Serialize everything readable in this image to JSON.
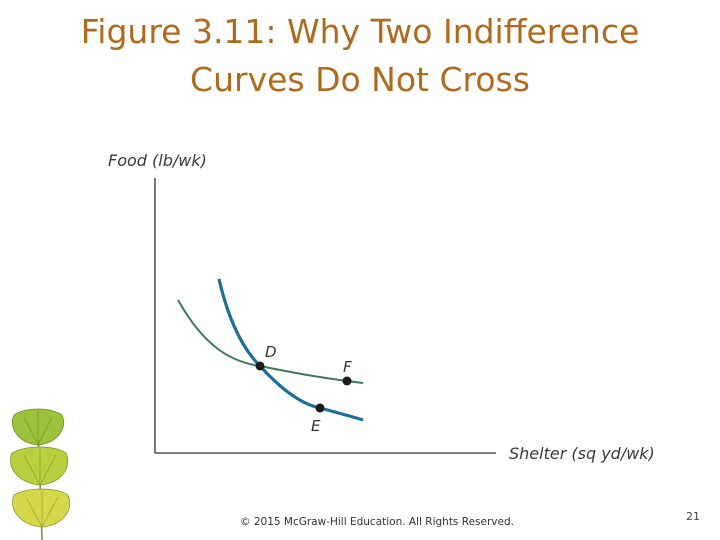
{
  "title": {
    "line1": "Figure 3.11: Why Two Indifference",
    "line2": "Curves Do Not Cross"
  },
  "axes": {
    "y_label": "Food (lb/wk)",
    "x_label": "Shelter (sq yd/wk)"
  },
  "points": {
    "d": "D",
    "e": "E",
    "f": "F"
  },
  "colors": {
    "title": "#b06a1e",
    "steep_curve": "#1b6f99",
    "flat_curve": "#3d7a5c",
    "axes": "#333333",
    "points": "#1a1a1a"
  },
  "decoration": "ginkgo-leaves",
  "footer": {
    "copyright": "© 2015 McGraw-Hill Education. All Rights Reserved.",
    "slide_number": "21"
  }
}
